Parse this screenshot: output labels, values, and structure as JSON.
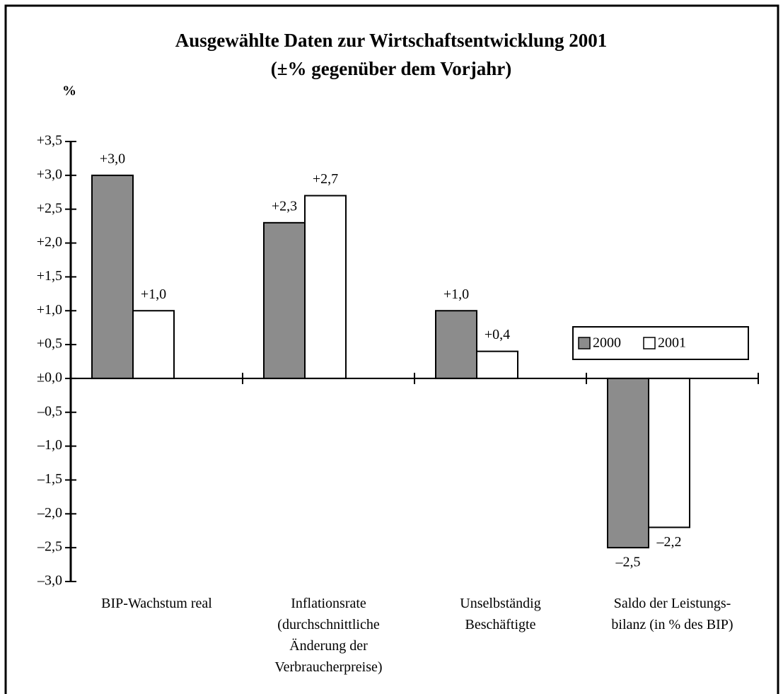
{
  "chart_data": {
    "type": "bar",
    "title": "Ausgewählte Daten zur Wirtschaftsentwicklung 2001",
    "subtitle": "(±% gegenüber dem Vorjahr)",
    "y_label": "%",
    "categories": [
      "BIP-Wachstum real",
      "Inflationsrate\n(durchschnittliche\nÄnderung der\nVerbraucherpreise)",
      "Unselbständig\nBeschäftigte",
      "Saldo der Leistungs-\nbilanz (in % des BIP)"
    ],
    "series": [
      {
        "name": "2000",
        "color": "#8c8c8c",
        "values": [
          3.0,
          2.3,
          1.0,
          -2.5
        ],
        "value_labels": [
          "+3,0",
          "+2,3",
          "+1,0",
          "–2,5"
        ]
      },
      {
        "name": "2001",
        "color": "#ffffff",
        "values": [
          1.0,
          2.7,
          0.4,
          -2.2
        ],
        "value_labels": [
          "+1,0",
          "+2,7",
          "+0,4",
          "–2,2"
        ]
      }
    ],
    "ylim": [
      -3.0,
      3.5
    ],
    "yticks": [
      {
        "value": -3.0,
        "label": "–3,0"
      },
      {
        "value": -2.5,
        "label": "–2,5"
      },
      {
        "value": -2.0,
        "label": "–2,0"
      },
      {
        "value": -1.5,
        "label": "–1,5"
      },
      {
        "value": -1.0,
        "label": "–1,0"
      },
      {
        "value": -0.5,
        "label": "–0,5"
      },
      {
        "value": 0,
        "label": "±0,0"
      },
      {
        "value": 0.5,
        "label": "+0,5"
      },
      {
        "value": 1.0,
        "label": "+1,0"
      },
      {
        "value": 1.5,
        "label": "+1,5"
      },
      {
        "value": 2.0,
        "label": "+2,0"
      },
      {
        "value": 2.5,
        "label": "+2,5"
      },
      {
        "value": 3.0,
        "label": "+3,0"
      },
      {
        "value": 3.5,
        "label": "+3,5"
      }
    ],
    "grid": false,
    "legend": "right"
  }
}
